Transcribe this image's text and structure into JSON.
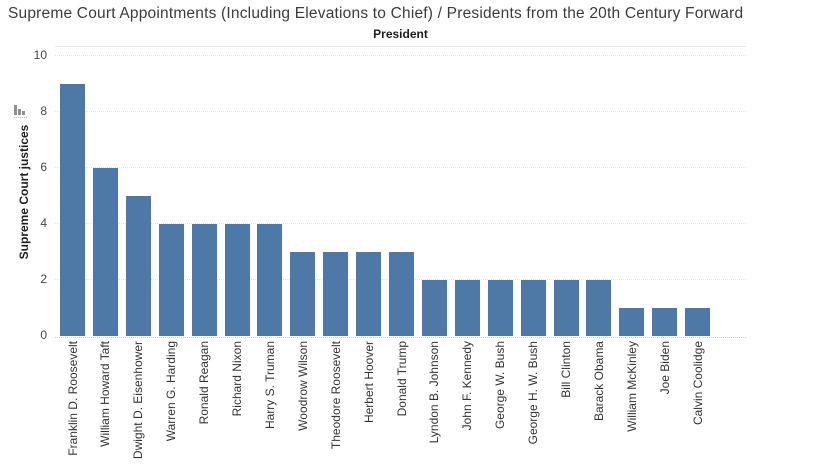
{
  "chart_data": {
    "type": "bar",
    "title": "Supreme Court Appointments (Including Elevations to Chief) / Presidents from the 20th Century Forward",
    "xlabel": "President",
    "ylabel": "Supreme Court justices",
    "categories": [
      "Franklin D. Roosevelt",
      "William Howard Taft",
      "Dwight D. Eisenhower",
      "Warren G. Harding",
      "Ronald Reagan",
      "Richard Nixon",
      "Harry S. Truman",
      "Woodrow Wilson",
      "Theodore Roosevelt",
      "Herbert Hoover",
      "Donald Trump",
      "Lyndon B. Johnson",
      "John F. Kennedy",
      "George W. Bush",
      "George H. W. Bush",
      "Bill Clinton",
      "Barack Obama",
      "William McKinley",
      "Joe Biden",
      "Calvin Coolidge"
    ],
    "values": [
      9,
      6,
      5,
      4,
      4,
      4,
      4,
      3,
      3,
      3,
      3,
      2,
      2,
      2,
      2,
      2,
      2,
      1,
      1,
      1
    ],
    "yticks": [
      0,
      2,
      4,
      6,
      8,
      10
    ],
    "ylim": [
      0,
      10.4
    ],
    "grid": "horizontal-dotted",
    "legend": "none",
    "sort": "descending",
    "bar_color": "#4e79a7"
  }
}
